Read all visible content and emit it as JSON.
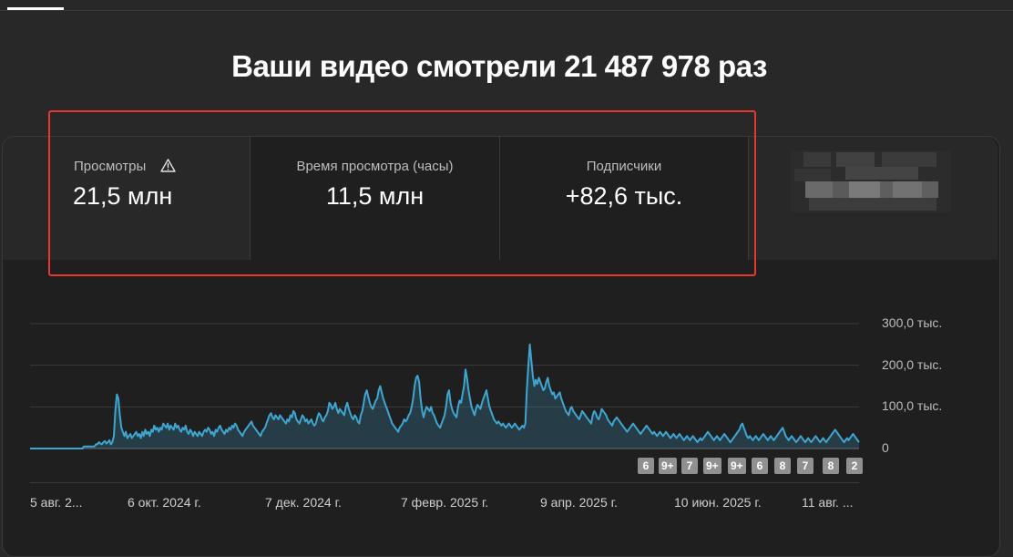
{
  "headline": "Ваши видео смотрели 21 487 978 раз",
  "metrics": [
    {
      "label": "Просмотры",
      "value": "21,5 млн",
      "icon": "warning-icon"
    },
    {
      "label": "Время просмотра (часы)",
      "value": "11,5 млн"
    },
    {
      "label": "Подписчики",
      "value": "+82,6 тыс."
    }
  ],
  "chart_data": {
    "type": "area",
    "metric": "Просмотры",
    "color": "#3ea6d1",
    "y_ticks": [
      "300,0 тыс.",
      "200,0 тыс.",
      "100,0 тыс.",
      "0"
    ],
    "y_max": 300000,
    "x_tick_labels": [
      "5 авг. 2...",
      "6 окт. 2024 г.",
      "7 дек. 2024 г.",
      "7 февр. 2025 г.",
      "9 апр. 2025 г.",
      "10 июн. 2025 г.",
      "11 авг. ..."
    ],
    "values": [
      0,
      0,
      0,
      0,
      0,
      0,
      0,
      0,
      0,
      0,
      0,
      0,
      0,
      0,
      0,
      0,
      0,
      0,
      0,
      0,
      0,
      0,
      0,
      0,
      0,
      0,
      0,
      0,
      0,
      0,
      0,
      0,
      0,
      0,
      0,
      0,
      5000,
      5000,
      5000,
      5000,
      5000,
      5000,
      5000,
      5000,
      10000,
      10000,
      15000,
      12000,
      10000,
      15000,
      18000,
      12000,
      15000,
      20000,
      10000,
      15000,
      30000,
      90000,
      130000,
      120000,
      80000,
      50000,
      40000,
      30000,
      40000,
      25000,
      30000,
      35000,
      25000,
      30000,
      35000,
      40000,
      30000,
      35000,
      25000,
      40000,
      30000,
      45000,
      35000,
      40000,
      30000,
      45000,
      40000,
      55000,
      45000,
      50000,
      40000,
      50000,
      45000,
      60000,
      55000,
      50000,
      60000,
      45000,
      55000,
      50000,
      45000,
      60000,
      50000,
      55000,
      45000,
      40000,
      50000,
      45000,
      55000,
      40000,
      35000,
      45000,
      40000,
      30000,
      40000,
      35000,
      30000,
      40000,
      35000,
      30000,
      40000,
      45000,
      40000,
      50000,
      45000,
      35000,
      40000,
      30000,
      45000,
      40000,
      50000,
      55000,
      45000,
      40000,
      35000,
      45000,
      40000,
      50000,
      45000,
      55000,
      50000,
      60000,
      55000,
      45000,
      40000,
      35000,
      30000,
      40000,
      45000,
      50000,
      55000,
      60000,
      65000,
      55000,
      50000,
      45000,
      40000,
      35000,
      30000,
      40000,
      45000,
      50000,
      60000,
      70000,
      80000,
      85000,
      75000,
      70000,
      80000,
      75000,
      70000,
      80000,
      75000,
      70000,
      65000,
      60000,
      70000,
      65000,
      80000,
      75000,
      90000,
      85000,
      70000,
      65000,
      60000,
      70000,
      80000,
      75000,
      65000,
      70000,
      60000,
      65000,
      70000,
      60000,
      55000,
      60000,
      75000,
      85000,
      80000,
      70000,
      65000,
      75000,
      80000,
      90000,
      110000,
      105000,
      95000,
      100000,
      110000,
      95000,
      85000,
      95000,
      90000,
      85000,
      80000,
      100000,
      110000,
      95000,
      85000,
      75000,
      70000,
      80000,
      75000,
      65000,
      60000,
      80000,
      90000,
      110000,
      130000,
      140000,
      125000,
      110000,
      100000,
      95000,
      105000,
      115000,
      120000,
      140000,
      150000,
      135000,
      120000,
      110000,
      100000,
      90000,
      80000,
      70000,
      60000,
      55000,
      50000,
      45000,
      40000,
      50000,
      55000,
      60000,
      70000,
      65000,
      70000,
      80000,
      85000,
      100000,
      120000,
      150000,
      170000,
      175000,
      160000,
      120000,
      90000,
      75000,
      90000,
      100000,
      95000,
      90000,
      100000,
      85000,
      80000,
      70000,
      60000,
      55000,
      50000,
      60000,
      70000,
      80000,
      100000,
      130000,
      140000,
      110000,
      95000,
      85000,
      80000,
      75000,
      100000,
      115000,
      110000,
      130000,
      150000,
      190000,
      170000,
      140000,
      120000,
      100000,
      90000,
      80000,
      95000,
      105000,
      100000,
      95000,
      110000,
      120000,
      130000,
      140000,
      120000,
      100000,
      90000,
      80000,
      70000,
      65000,
      60000,
      65000,
      60000,
      55000,
      60000,
      55000,
      50000,
      55000,
      60000,
      55000,
      50000,
      55000,
      60000,
      55000,
      50000,
      45000,
      50000,
      55000,
      50000,
      60000,
      140000,
      200000,
      250000,
      210000,
      175000,
      150000,
      165000,
      155000,
      170000,
      160000,
      150000,
      140000,
      145000,
      160000,
      170000,
      150000,
      140000,
      130000,
      135000,
      120000,
      125000,
      130000,
      135000,
      120000,
      110000,
      100000,
      90000,
      85000,
      80000,
      95000,
      100000,
      90000,
      85000,
      80000,
      75000,
      70000,
      80000,
      90000,
      85000,
      80000,
      75000,
      70000,
      65000,
      60000,
      80000,
      90000,
      85000,
      75000,
      70000,
      80000,
      95000,
      90000,
      85000,
      80000,
      70000,
      65000,
      60000,
      55000,
      65000,
      70000,
      75000,
      70000,
      65000,
      60000,
      55000,
      50000,
      45000,
      40000,
      45000,
      50000,
      55000,
      60000,
      55000,
      50000,
      45000,
      40000,
      35000,
      40000,
      45000,
      50000,
      55000,
      50000,
      45000,
      40000,
      35000,
      40000,
      35000,
      30000,
      35000,
      40000,
      35000,
      30000,
      35000,
      40000,
      35000,
      30000,
      25000,
      30000,
      35000,
      30000,
      25000,
      30000,
      35000,
      30000,
      25000,
      20000,
      25000,
      30000,
      25000,
      20000,
      25000,
      30000,
      25000,
      20000,
      15000,
      20000,
      25000,
      20000,
      25000,
      30000,
      35000,
      40000,
      35000,
      30000,
      25000,
      20000,
      25000,
      30000,
      25000,
      20000,
      25000,
      30000,
      35000,
      30000,
      25000,
      20000,
      15000,
      20000,
      25000,
      30000,
      35000,
      40000,
      45000,
      55000,
      60000,
      50000,
      40000,
      30000,
      25000,
      30000,
      25000,
      20000,
      25000,
      30000,
      25000,
      20000,
      25000,
      30000,
      35000,
      30000,
      25000,
      20000,
      25000,
      30000,
      25000,
      20000,
      25000,
      30000,
      35000,
      40000,
      45000,
      50000,
      40000,
      30000,
      25000,
      20000,
      25000,
      30000,
      25000,
      20000,
      15000,
      20000,
      25000,
      30000,
      25000,
      20000,
      15000,
      20000,
      25000,
      20000,
      15000,
      20000,
      25000,
      30000,
      25000,
      20000,
      15000,
      20000,
      25000,
      20000,
      15000,
      20000,
      25000,
      30000,
      35000,
      40000,
      45000,
      40000,
      35000,
      30000,
      25000,
      20000,
      15000,
      20000,
      25000,
      20000,
      25000,
      30000,
      35000,
      30000,
      25000,
      20000,
      15000
    ],
    "badges": [
      "6",
      "9+",
      "7",
      "9+",
      "9+",
      "6",
      "8",
      "7",
      "8",
      "2"
    ]
  }
}
